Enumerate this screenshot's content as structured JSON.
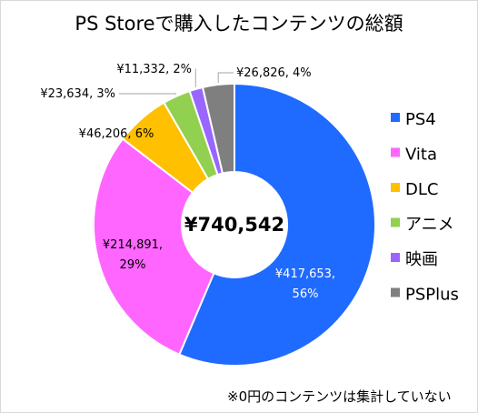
{
  "chart_data": {
    "type": "pie",
    "title": "PS Storeで購入したコンテンツの総額",
    "center_label": "¥740,542",
    "legend_position": "right",
    "slices": [
      {
        "name": "PS4",
        "value": 417653,
        "label_value": "¥417,653,",
        "label_pct": "56%",
        "color": "#1F6BFF"
      },
      {
        "name": "Vita",
        "value": 214891,
        "label_value": "¥214,891,",
        "label_pct": "29%",
        "color": "#FF66FF"
      },
      {
        "name": "DLC",
        "value": 46206,
        "label_value": "¥46,206, 6%",
        "label_pct": "",
        "color": "#FFC000"
      },
      {
        "name": "アニメ",
        "value": 23634,
        "label_value": "¥23,634, 3%",
        "label_pct": "",
        "color": "#92D050"
      },
      {
        "name": "映画",
        "value": 11332,
        "label_value": "¥11,332, 2%",
        "label_pct": "",
        "color": "#9966FF"
      },
      {
        "name": "PSPlus",
        "value": 26826,
        "label_value": "¥26,826, 4%",
        "label_pct": "",
        "color": "#7F7F7F"
      }
    ],
    "footnote": "※0円のコンテンツは集計していない"
  }
}
